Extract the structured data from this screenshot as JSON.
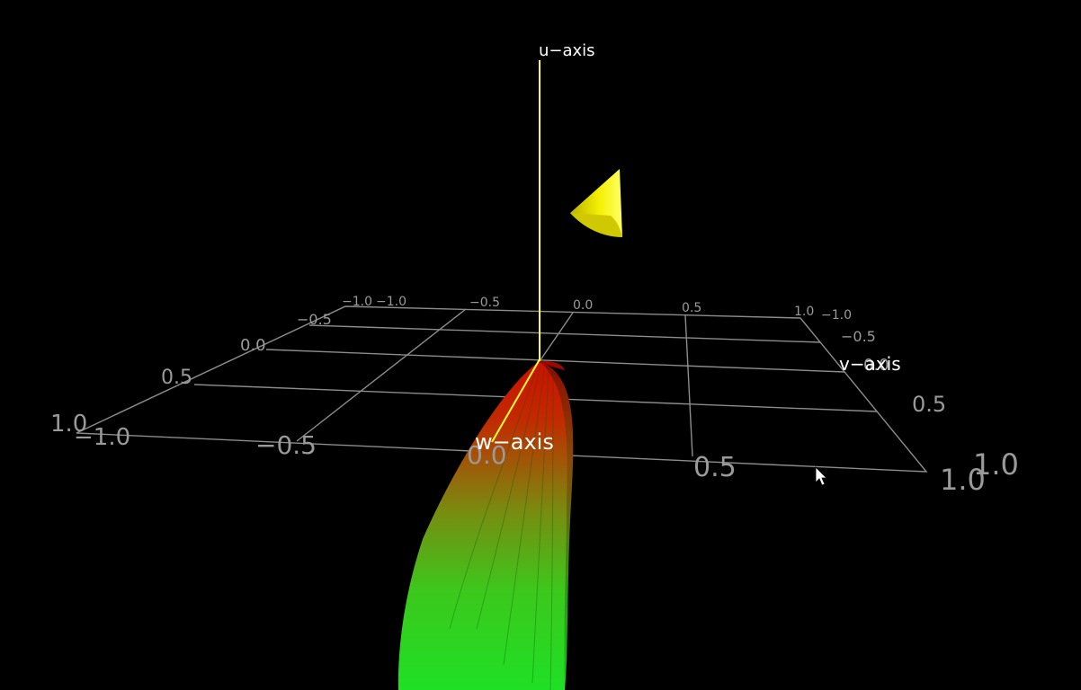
{
  "scene": {
    "background_color": "#000000",
    "grid_color": "#8c8c8c",
    "axis_color": "#ffff33",
    "marker_color": "#e6e600",
    "surface_colors": [
      "#cc1100",
      "#22dd22"
    ],
    "marker_shape": "cone",
    "cursor_icon": "mouse-pointer-icon"
  },
  "axes": {
    "u_label": "u−axis",
    "v_label": "v−axis",
    "w_label": "w−axis"
  },
  "ticks": {
    "back_edge": [
      "−1.0",
      "−0.5",
      "0.0",
      "0.5",
      "1.0"
    ],
    "left_far": "−1.0",
    "left_side": [
      "−0.5",
      "0.0",
      "0.5",
      "1.0"
    ],
    "right_side": [
      "−1.0",
      "−0.5",
      "0.0",
      "0.5",
      "1.0"
    ],
    "front_edge": [
      "−1.0",
      "−0.5",
      "0.0",
      "0.5",
      "1.0"
    ]
  }
}
